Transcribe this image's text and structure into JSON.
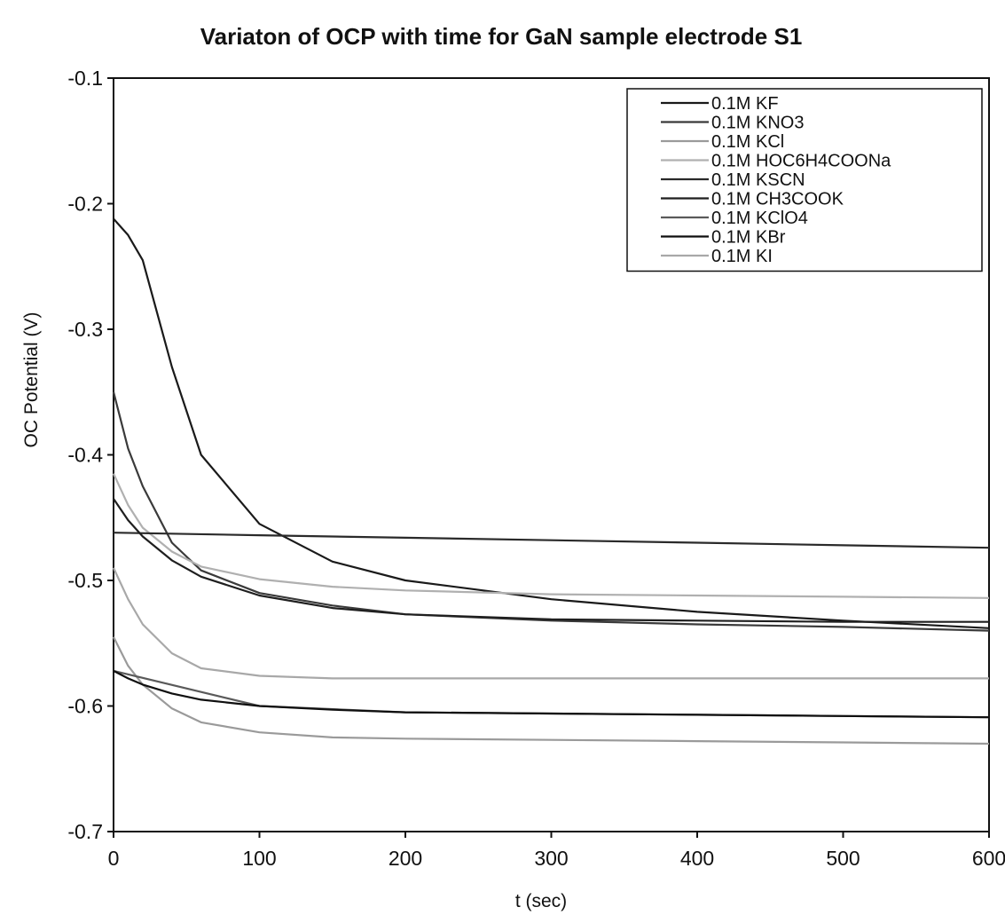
{
  "chart_data": {
    "type": "line",
    "title": "Variaton of OCP with time for GaN sample electrode S1",
    "xlabel": "t (sec)",
    "ylabel": "OC Potential (V)",
    "xlim": [
      0,
      600
    ],
    "ylim": [
      -0.7,
      -0.1
    ],
    "xticks": [
      "0",
      "100",
      "200",
      "300",
      "400",
      "500",
      "600"
    ],
    "yticks": [
      "-0.1",
      "-0.2",
      "-0.3",
      "-0.4",
      "-0.5",
      "-0.6",
      "-0.7"
    ],
    "grid": false,
    "legend_position": "top-right",
    "series": [
      {
        "name": "0.1M KF",
        "color": "#1a1a1a",
        "x": [
          0,
          10,
          20,
          40,
          60,
          100,
          150,
          200,
          300,
          400,
          500,
          600
        ],
        "y": [
          -0.212,
          -0.225,
          -0.245,
          -0.33,
          -0.4,
          -0.455,
          -0.485,
          -0.5,
          -0.515,
          -0.525,
          -0.532,
          -0.538
        ]
      },
      {
        "name": "0.1M KNO3",
        "color": "#3a3a3a",
        "x": [
          0,
          10,
          20,
          40,
          60,
          100,
          150,
          200,
          300,
          400,
          500,
          600
        ],
        "y": [
          -0.35,
          -0.395,
          -0.425,
          -0.47,
          -0.492,
          -0.51,
          -0.52,
          -0.527,
          -0.532,
          -0.535,
          -0.537,
          -0.54
        ]
      },
      {
        "name": "0.1M KCl",
        "color": "#9a9a9a",
        "x": [
          0,
          10,
          20,
          40,
          60,
          100,
          150,
          200,
          300,
          400,
          500,
          600
        ],
        "y": [
          -0.545,
          -0.568,
          -0.583,
          -0.602,
          -0.613,
          -0.621,
          -0.625,
          -0.626,
          -0.627,
          -0.628,
          -0.629,
          -0.63
        ]
      },
      {
        "name": "0.1M HOC6H4COONa",
        "color": "#b0b0b0",
        "x": [
          0,
          10,
          20,
          40,
          60,
          100,
          150,
          200,
          300,
          400,
          500,
          600
        ],
        "y": [
          -0.415,
          -0.44,
          -0.458,
          -0.477,
          -0.489,
          -0.499,
          -0.505,
          -0.508,
          -0.511,
          -0.512,
          -0.513,
          -0.514
        ]
      },
      {
        "name": "0.1M KSCN",
        "color": "#2a2a2a",
        "x": [
          0,
          100,
          200,
          300,
          400,
          500,
          600
        ],
        "y": [
          -0.462,
          -0.464,
          -0.466,
          -0.468,
          -0.47,
          -0.472,
          -0.474
        ]
      },
      {
        "name": "0.1M CH3COOK",
        "color": "#1f1f1f",
        "x": [
          0,
          10,
          20,
          40,
          60,
          100,
          150,
          200,
          300,
          400,
          500,
          600
        ],
        "y": [
          -0.435,
          -0.452,
          -0.465,
          -0.484,
          -0.497,
          -0.512,
          -0.522,
          -0.527,
          -0.531,
          -0.532,
          -0.533,
          -0.533
        ]
      },
      {
        "name": "0.1M KClO4",
        "color": "#5a5a5a",
        "x": [
          0,
          100,
          200,
          300,
          400,
          500,
          600
        ],
        "y": [
          -0.572,
          -0.6,
          -0.605,
          -0.606,
          -0.607,
          -0.608,
          -0.609
        ]
      },
      {
        "name": "0.1M KBr",
        "color": "#0f0f0f",
        "x": [
          0,
          10,
          20,
          40,
          60,
          100,
          150,
          200,
          300,
          400,
          500,
          600
        ],
        "y": [
          -0.572,
          -0.578,
          -0.583,
          -0.59,
          -0.595,
          -0.6,
          -0.603,
          -0.605,
          -0.606,
          -0.607,
          -0.608,
          -0.609
        ]
      },
      {
        "name": "0.1M KI",
        "color": "#a8a8a8",
        "x": [
          0,
          10,
          20,
          40,
          60,
          100,
          150,
          200,
          300,
          400,
          500,
          600
        ],
        "y": [
          -0.49,
          -0.515,
          -0.535,
          -0.558,
          -0.57,
          -0.576,
          -0.578,
          -0.578,
          -0.578,
          -0.578,
          -0.578,
          -0.578
        ]
      }
    ]
  }
}
